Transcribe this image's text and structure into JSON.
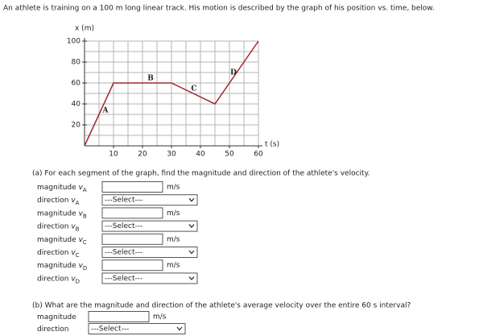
{
  "question": "An athlete is training on a 100 m long linear track. His motion is described by the graph of his position vs. time, below.",
  "chart_data": {
    "type": "line",
    "ylabel": "x (m)",
    "xlabel": "t (s)",
    "x": [
      0,
      10,
      30,
      45,
      60
    ],
    "series": [
      {
        "color": "#a0282e",
        "values": [
          0,
          60,
          60,
          40,
          100
        ]
      }
    ],
    "segment_labels": [
      "A",
      "B",
      "C",
      "D"
    ],
    "xlim": [
      0,
      60
    ],
    "ylim": [
      0,
      100
    ],
    "xticks": [
      10,
      20,
      30,
      40,
      50,
      60
    ],
    "yticks": [
      20,
      40,
      60,
      80,
      100
    ],
    "grid": true
  },
  "part_a": {
    "prompt": "(a) For each segment of the graph, find the magnitude and direction of the athlete's velocity.",
    "rows": [
      {
        "label": "magnitude",
        "symbol": "v",
        "sub": "A",
        "unit": "m/s"
      },
      {
        "label": "direction",
        "symbol": "v",
        "sub": "A",
        "select": "---Select---"
      },
      {
        "label": "magnitude",
        "symbol": "v",
        "sub": "B",
        "unit": "m/s"
      },
      {
        "label": "direction",
        "symbol": "v",
        "sub": "B",
        "select": "---Select---"
      },
      {
        "label": "magnitude",
        "symbol": "v",
        "sub": "C",
        "unit": "m/s"
      },
      {
        "label": "direction",
        "symbol": "v",
        "sub": "C",
        "select": "---Select---"
      },
      {
        "label": "magnitude",
        "symbol": "v",
        "sub": "D",
        "unit": "m/s"
      },
      {
        "label": "direction",
        "symbol": "v",
        "sub": "D",
        "select": "---Select---"
      }
    ]
  },
  "part_b": {
    "prompt": "(b) What are the magnitude and direction of the athlete's average velocity over the entire 60 s interval?",
    "rows": [
      {
        "label": "magnitude",
        "unit": "m/s"
      },
      {
        "label": "direction",
        "select": "---Select---"
      }
    ]
  }
}
